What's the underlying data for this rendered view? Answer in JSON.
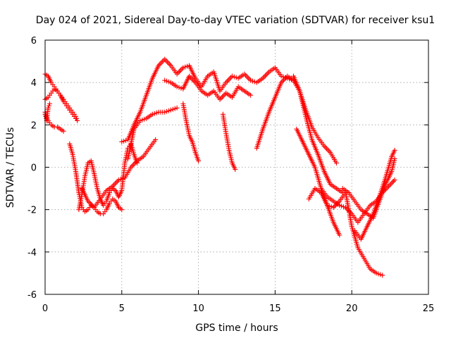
{
  "chart_data": {
    "type": "scatter",
    "title": "Day 024 of 2021, Sidereal Day-to-day VTEC variation (SDTVAR) for receiver ksu1",
    "xlabel": "GPS time / hours",
    "ylabel": "SDTVAR / TECUs",
    "xlim": [
      0,
      25
    ],
    "ylim": [
      -6,
      6
    ],
    "xticks": [
      0,
      5,
      10,
      15,
      20,
      25
    ],
    "yticks": [
      -6,
      -4,
      -2,
      0,
      2,
      4,
      6
    ],
    "xtick_labels": [
      "0",
      "5",
      "10",
      "15",
      "20",
      "25"
    ],
    "ytick_labels": [
      "-6",
      "-4",
      "-2",
      "0",
      "2",
      "4",
      "6"
    ],
    "grid": true,
    "marker": "plus",
    "color": "#ff0000",
    "series": [
      {
        "x": [
          0.0,
          0.2,
          0.4,
          0.6,
          0.8,
          1.0,
          1.2,
          1.4,
          1.6,
          1.8,
          2.0,
          2.1
        ],
        "y": [
          4.4,
          4.3,
          4.0,
          3.8,
          3.6,
          3.4,
          3.2,
          3.0,
          2.8,
          2.6,
          2.4,
          2.2
        ]
      },
      {
        "x": [
          0.0,
          0.2,
          0.4,
          0.6,
          0.8,
          1.0,
          1.2,
          1.4,
          1.6,
          1.8,
          2.0
        ],
        "y": [
          3.2,
          3.3,
          3.5,
          3.7,
          3.6,
          3.4,
          3.1,
          2.9,
          2.7,
          2.5,
          2.3
        ]
      },
      {
        "x": [
          0.0,
          0.2,
          0.4,
          0.6,
          0.8,
          1.0,
          1.2
        ],
        "y": [
          2.5,
          2.2,
          2.0,
          1.9,
          1.9,
          1.8,
          1.7
        ]
      },
      {
        "x": [
          0.0,
          0.1,
          0.2,
          0.3
        ],
        "y": [
          2.6,
          2.2,
          2.8,
          3.0
        ]
      },
      {
        "x": [
          1.6,
          1.8,
          2.0,
          2.2,
          2.4,
          2.6,
          2.8,
          3.0,
          3.2,
          3.4,
          3.6,
          3.8,
          4.0,
          4.2,
          4.4,
          4.6,
          4.8,
          5.0
        ],
        "y": [
          1.1,
          0.6,
          -0.2,
          -1.2,
          -1.9,
          -2.1,
          -2.0,
          -1.8,
          -1.9,
          -2.1,
          -2.2,
          -2.2,
          -2.0,
          -1.7,
          -1.5,
          -1.6,
          -1.9,
          -2.0
        ]
      },
      {
        "x": [
          2.2,
          2.4,
          2.6,
          2.8,
          3.0,
          3.2,
          3.4,
          3.6,
          3.8,
          4.0,
          4.2,
          4.4,
          4.6,
          4.8,
          5.0,
          5.2,
          5.4,
          5.6,
          5.8,
          6.0
        ],
        "y": [
          -2.0,
          -1.3,
          -0.4,
          0.2,
          0.3,
          -0.3,
          -1.0,
          -1.5,
          -1.8,
          -1.6,
          -1.2,
          -1.0,
          -1.1,
          -1.4,
          -1.1,
          0.2,
          0.9,
          1.1,
          0.6,
          0.2
        ]
      },
      {
        "x": [
          2.4,
          2.8,
          3.2,
          3.6,
          4.0,
          4.4,
          4.8,
          5.2,
          5.6,
          6.0,
          6.4,
          6.8,
          7.2
        ],
        "y": [
          -1.0,
          -1.6,
          -1.9,
          -1.5,
          -1.1,
          -0.9,
          -0.6,
          -0.5,
          0.0,
          0.3,
          0.5,
          0.9,
          1.3
        ]
      },
      {
        "x": [
          5.0,
          5.4,
          5.8,
          6.2,
          6.6,
          7.0,
          7.4,
          7.8,
          8.2,
          8.6,
          9.0,
          9.4,
          9.8,
          10.2,
          10.6,
          11.0,
          11.4,
          11.8,
          12.2,
          12.6,
          13.0,
          13.4,
          13.8,
          14.2,
          14.6,
          15.0,
          15.4,
          15.8,
          16.2
        ],
        "y": [
          1.2,
          1.3,
          2.0,
          2.6,
          3.4,
          4.2,
          4.8,
          5.1,
          4.8,
          4.4,
          4.7,
          4.8,
          4.2,
          3.8,
          4.3,
          4.5,
          3.6,
          4.0,
          4.3,
          4.2,
          4.4,
          4.1,
          4.0,
          4.2,
          4.5,
          4.7,
          4.3,
          4.2,
          4.1
        ]
      },
      {
        "x": [
          5.4,
          5.8,
          6.2,
          6.6,
          7.0,
          7.4,
          7.8,
          8.2,
          8.6
        ],
        "y": [
          0.4,
          1.8,
          2.2,
          2.3,
          2.5,
          2.6,
          2.6,
          2.7,
          2.8
        ]
      },
      {
        "x": [
          7.8,
          8.2,
          8.6,
          9.0,
          9.4,
          9.8,
          10.2,
          10.6,
          11.0,
          11.4,
          11.8,
          12.2,
          12.6,
          13.0,
          13.4
        ],
        "y": [
          4.1,
          4.0,
          3.8,
          3.7,
          4.3,
          4.0,
          3.6,
          3.4,
          3.6,
          3.2,
          3.5,
          3.3,
          3.8,
          3.6,
          3.4
        ]
      },
      {
        "x": [
          9.0,
          9.2,
          9.4,
          9.6,
          9.8,
          10.0
        ],
        "y": [
          3.0,
          2.2,
          1.5,
          1.2,
          0.7,
          0.3
        ]
      },
      {
        "x": [
          11.6,
          11.8,
          12.0,
          12.2,
          12.4
        ],
        "y": [
          2.5,
          1.6,
          0.8,
          0.2,
          -0.1
        ]
      },
      {
        "x": [
          13.8,
          14.2,
          14.6,
          15.0,
          15.4,
          15.8,
          16.2,
          16.6,
          17.0,
          17.4,
          17.8,
          18.2,
          18.6,
          19.0,
          19.4
        ],
        "y": [
          0.9,
          1.8,
          2.6,
          3.3,
          4.0,
          4.3,
          4.1,
          3.6,
          2.4,
          1.3,
          0.6,
          -0.2,
          -0.8,
          -1.0,
          -1.2
        ]
      },
      {
        "x": [
          16.2,
          16.6,
          17.0,
          17.4,
          17.8,
          18.2,
          18.6,
          19.0
        ],
        "y": [
          4.3,
          3.6,
          2.7,
          1.9,
          1.4,
          1.0,
          0.7,
          0.2
        ]
      },
      {
        "x": [
          16.4,
          16.8,
          17.2,
          17.6,
          18.0,
          18.4,
          18.8,
          19.2
        ],
        "y": [
          1.8,
          1.2,
          0.6,
          0.0,
          -1.0,
          -1.8,
          -2.6,
          -3.2
        ]
      },
      {
        "x": [
          17.2,
          17.6,
          18.0,
          18.4,
          18.8,
          19.2,
          19.6,
          20.0,
          20.4,
          20.8,
          21.2,
          21.6,
          22.0
        ],
        "y": [
          -1.5,
          -1.0,
          -1.2,
          -1.8,
          -1.9,
          -1.6,
          -1.2,
          -2.8,
          -3.8,
          -4.3,
          -4.8,
          -5.0,
          -5.1
        ]
      },
      {
        "x": [
          18.0,
          18.4,
          18.8,
          19.2,
          19.6,
          20.0,
          20.4,
          20.8,
          21.2,
          21.6,
          22.0,
          22.4,
          22.8
        ],
        "y": [
          -1.0,
          -1.4,
          -1.6,
          -1.8,
          -1.9,
          -2.2,
          -2.6,
          -2.2,
          -1.8,
          -1.6,
          -1.2,
          -0.9,
          -0.6
        ]
      },
      {
        "x": [
          19.4,
          19.8,
          20.2,
          20.6,
          21.0,
          21.4,
          21.8,
          22.2,
          22.6,
          22.8
        ],
        "y": [
          -1.0,
          -1.2,
          -1.6,
          -2.0,
          -2.2,
          -2.4,
          -1.6,
          -0.8,
          -0.2,
          0.4
        ]
      },
      {
        "x": [
          20.2,
          20.6,
          21.0,
          21.4,
          21.8,
          22.2,
          22.6,
          22.8
        ],
        "y": [
          -3.0,
          -3.4,
          -2.8,
          -2.2,
          -1.4,
          -0.5,
          0.5,
          0.8
        ]
      }
    ]
  }
}
